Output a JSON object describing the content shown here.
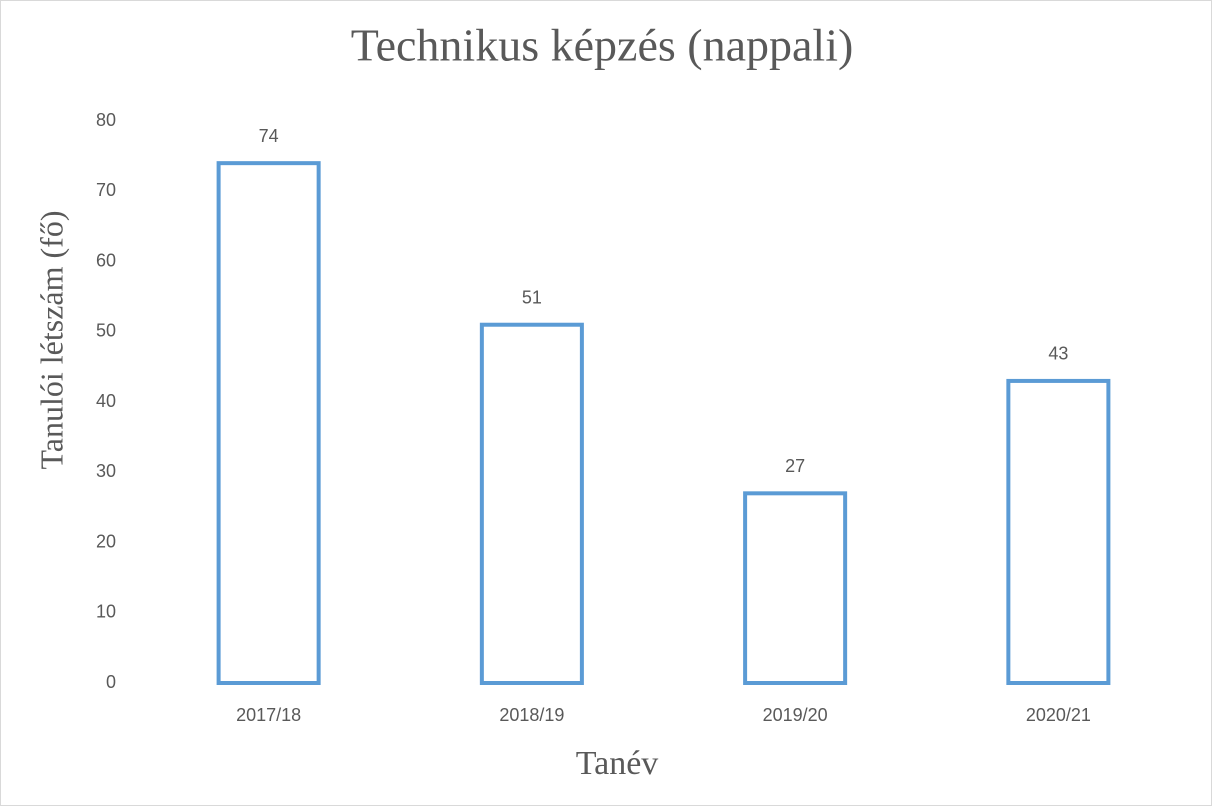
{
  "chart_data": {
    "type": "bar",
    "title": "Technikus képzés  (nappali)",
    "x_label": "Tanév",
    "y_label": "Tanulói létszám (fő)",
    "categories": [
      "2017/18",
      "2018/19",
      "2019/20",
      "2020/21"
    ],
    "values": [
      74,
      51,
      27,
      43
    ],
    "color": "#5b9bd5",
    "ylim": [
      0,
      80
    ],
    "yticks": [
      0,
      10,
      20,
      30,
      40,
      50,
      60,
      70,
      80
    ],
    "grid": false
  }
}
